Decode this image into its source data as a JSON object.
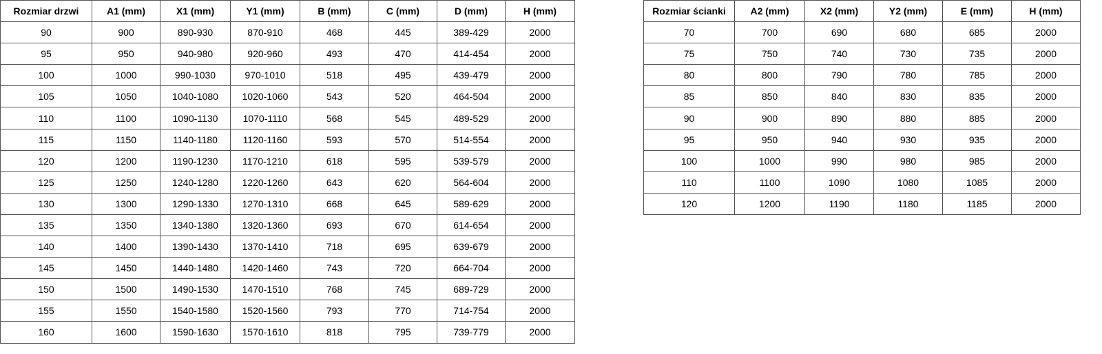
{
  "doors": {
    "headers": [
      "Rozmiar drzwi",
      "A1 (mm)",
      "X1 (mm)",
      "Y1 (mm)",
      "B (mm)",
      "C (mm)",
      "D (mm)",
      "H (mm)"
    ],
    "rows": [
      [
        "90",
        "900",
        "890-930",
        "870-910",
        "468",
        "445",
        "389-429",
        "2000"
      ],
      [
        "95",
        "950",
        "940-980",
        "920-960",
        "493",
        "470",
        "414-454",
        "2000"
      ],
      [
        "100",
        "1000",
        "990-1030",
        "970-1010",
        "518",
        "495",
        "439-479",
        "2000"
      ],
      [
        "105",
        "1050",
        "1040-1080",
        "1020-1060",
        "543",
        "520",
        "464-504",
        "2000"
      ],
      [
        "110",
        "1100",
        "1090-1130",
        "1070-1110",
        "568",
        "545",
        "489-529",
        "2000"
      ],
      [
        "115",
        "1150",
        "1140-1180",
        "1120-1160",
        "593",
        "570",
        "514-554",
        "2000"
      ],
      [
        "120",
        "1200",
        "1190-1230",
        "1170-1210",
        "618",
        "595",
        "539-579",
        "2000"
      ],
      [
        "125",
        "1250",
        "1240-1280",
        "1220-1260",
        "643",
        "620",
        "564-604",
        "2000"
      ],
      [
        "130",
        "1300",
        "1290-1330",
        "1270-1310",
        "668",
        "645",
        "589-629",
        "2000"
      ],
      [
        "135",
        "1350",
        "1340-1380",
        "1320-1360",
        "693",
        "670",
        "614-654",
        "2000"
      ],
      [
        "140",
        "1400",
        "1390-1430",
        "1370-1410",
        "718",
        "695",
        "639-679",
        "2000"
      ],
      [
        "145",
        "1450",
        "1440-1480",
        "1420-1460",
        "743",
        "720",
        "664-704",
        "2000"
      ],
      [
        "150",
        "1500",
        "1490-1530",
        "1470-1510",
        "768",
        "745",
        "689-729",
        "2000"
      ],
      [
        "155",
        "1550",
        "1540-1580",
        "1520-1560",
        "793",
        "770",
        "714-754",
        "2000"
      ],
      [
        "160",
        "1600",
        "1590-1630",
        "1570-1610",
        "818",
        "795",
        "739-779",
        "2000"
      ]
    ]
  },
  "walls": {
    "headers": [
      "Rozmiar ścianki",
      "A2 (mm)",
      "X2 (mm)",
      "Y2 (mm)",
      "E (mm)",
      "H (mm)"
    ],
    "rows": [
      [
        "70",
        "700",
        "690",
        "680",
        "685",
        "2000"
      ],
      [
        "75",
        "750",
        "740",
        "730",
        "735",
        "2000"
      ],
      [
        "80",
        "800",
        "790",
        "780",
        "785",
        "2000"
      ],
      [
        "85",
        "850",
        "840",
        "830",
        "835",
        "2000"
      ],
      [
        "90",
        "900",
        "890",
        "880",
        "885",
        "2000"
      ],
      [
        "95",
        "950",
        "940",
        "930",
        "935",
        "2000"
      ],
      [
        "100",
        "1000",
        "990",
        "980",
        "985",
        "2000"
      ],
      [
        "110",
        "1100",
        "1090",
        "1080",
        "1085",
        "2000"
      ],
      [
        "120",
        "1200",
        "1190",
        "1180",
        "1185",
        "2000"
      ]
    ]
  }
}
